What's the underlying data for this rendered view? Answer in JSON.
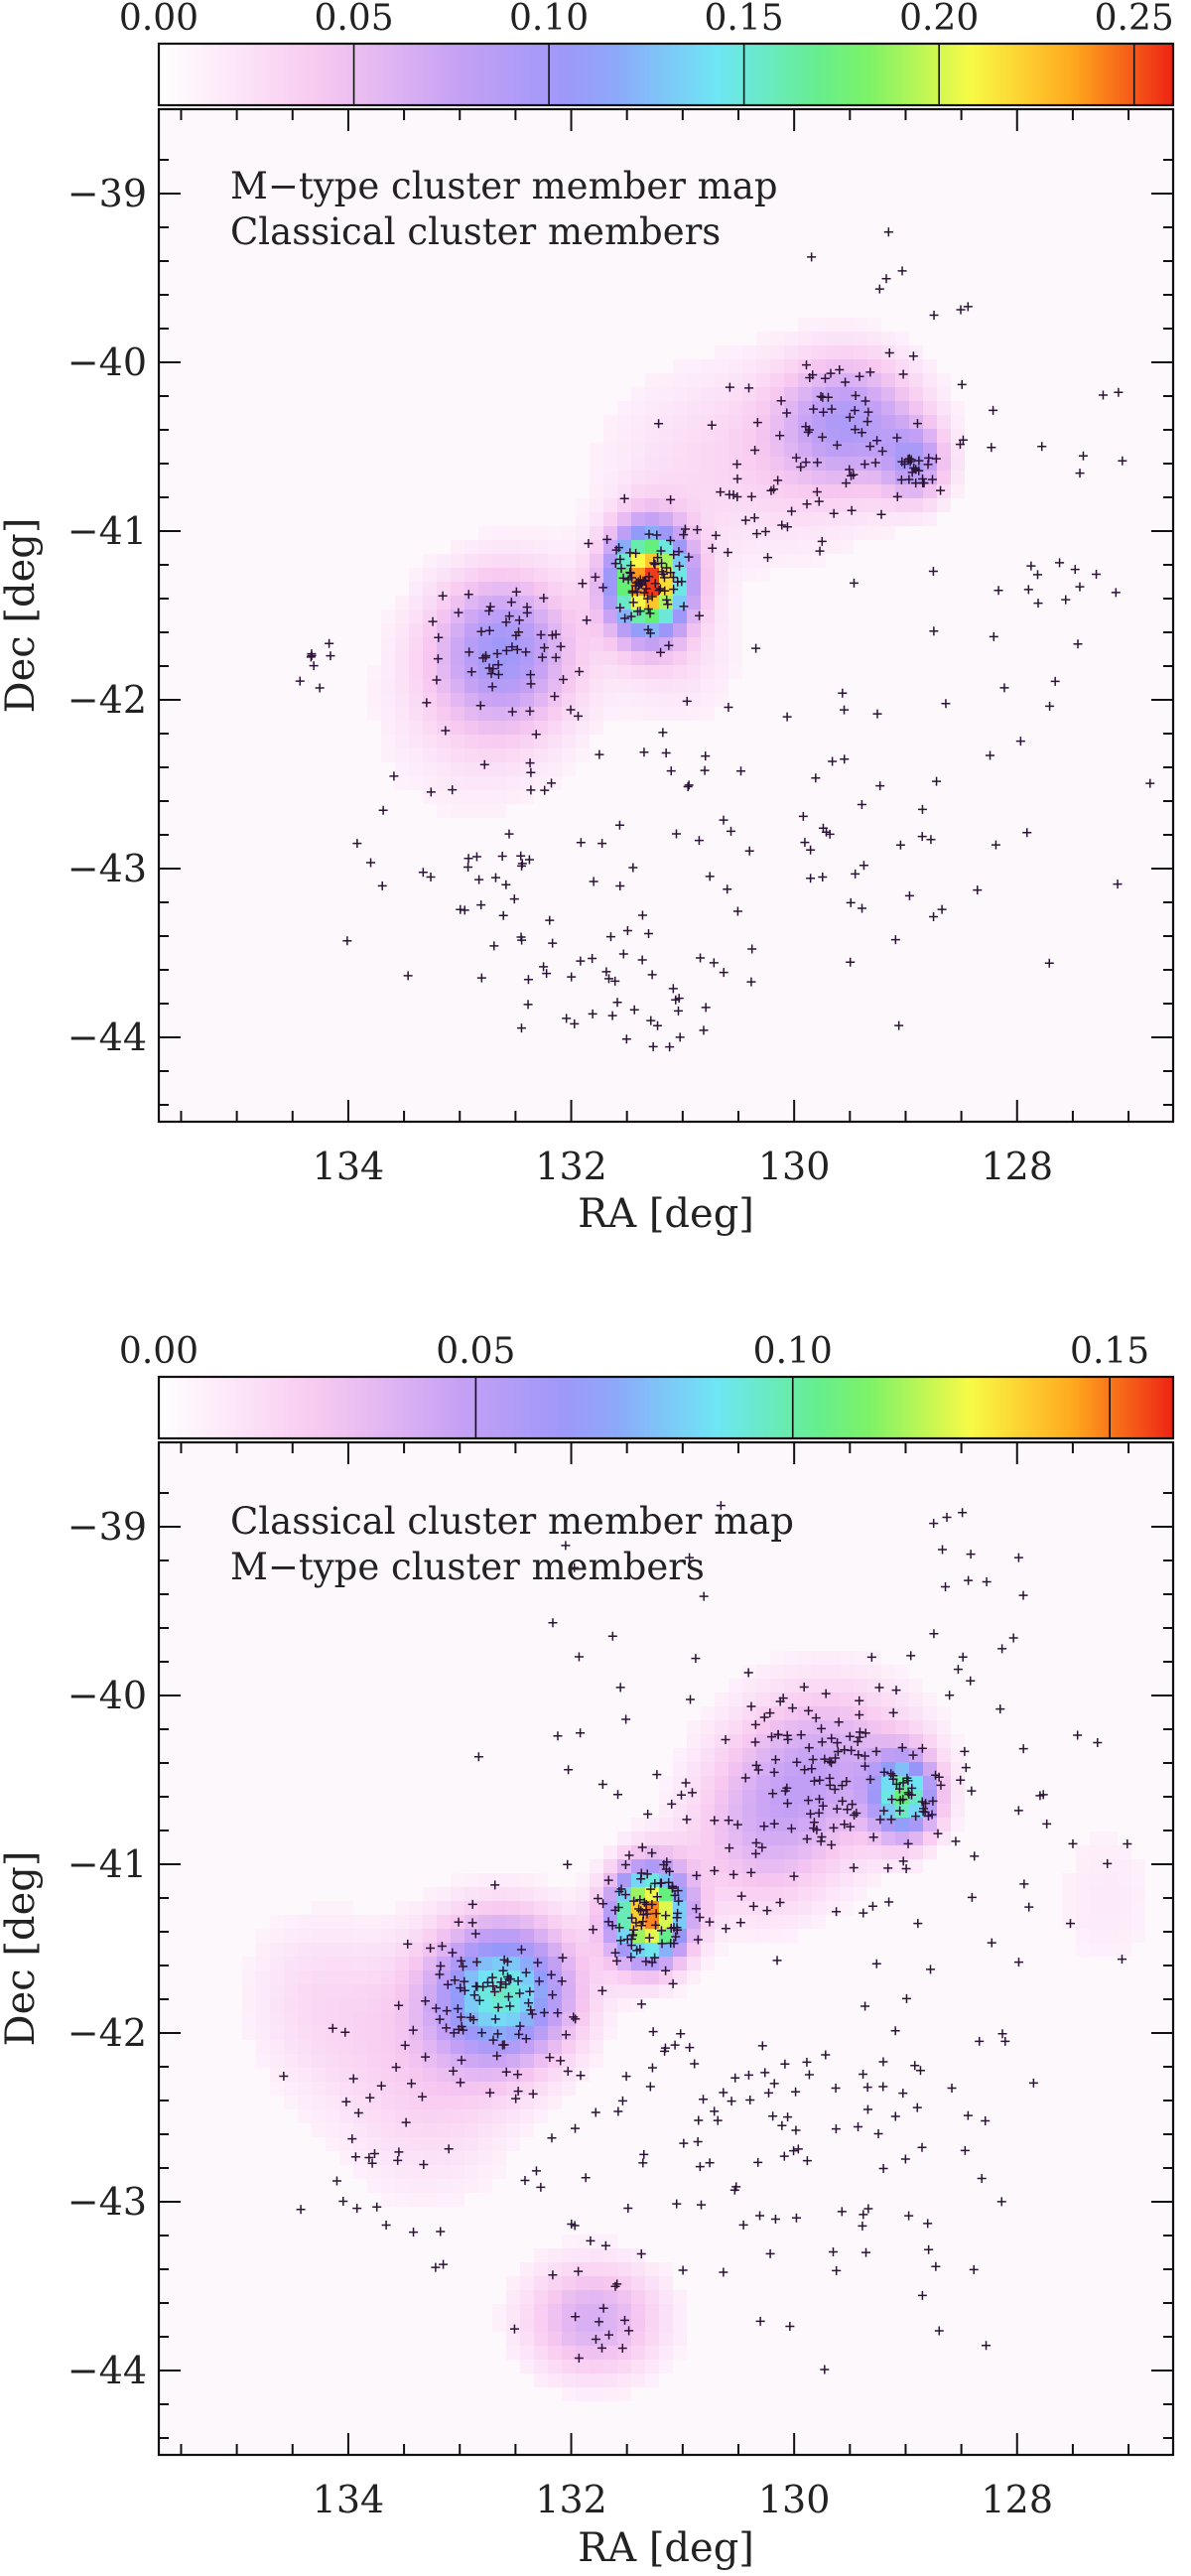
{
  "chart_data": [
    {
      "type": "scatter",
      "title_lines": [
        "M−type cluster member map",
        "Classical cluster members"
      ],
      "xlabel": "RA [deg]",
      "ylabel": "Dec [deg]",
      "xlim": [
        135.7,
        126.6
      ],
      "ylim": [
        -44.5,
        -38.5
      ],
      "x_ticks": [
        "134",
        "132",
        "130",
        "128"
      ],
      "x_tick_values": [
        134,
        132,
        130,
        128
      ],
      "y_ticks": [
        "−39",
        "−40",
        "−41",
        "−42",
        "−43",
        "−44"
      ],
      "y_tick_values": [
        -39,
        -40,
        -41,
        -42,
        -43,
        -44
      ],
      "colorbar": {
        "range": [
          0,
          0.26
        ],
        "ticks": [
          "0.00",
          "0.05",
          "0.10",
          "0.15",
          "0.20",
          "0.25"
        ],
        "tick_values": [
          0,
          0.05,
          0.1,
          0.15,
          0.2,
          0.25
        ]
      },
      "density_peaks": [
        {
          "ra": 131.3,
          "dec": -41.3,
          "value": 0.25,
          "sx": 0.25,
          "sy": 0.22
        },
        {
          "ra": 132.6,
          "dec": -41.7,
          "value": 0.09,
          "sx": 0.45,
          "sy": 0.32
        },
        {
          "ra": 129.5,
          "dec": -40.35,
          "value": 0.08,
          "sx": 0.45,
          "sy": 0.28
        },
        {
          "ra": 128.9,
          "dec": -40.6,
          "value": 0.07,
          "sx": 0.2,
          "sy": 0.16
        },
        {
          "ra": 130.5,
          "dec": -40.6,
          "value": 0.03,
          "sx": 0.9,
          "sy": 0.45
        },
        {
          "ra": 132.9,
          "dec": -42.1,
          "value": 0.02,
          "sx": 0.7,
          "sy": 0.5
        },
        {
          "ra": 131.0,
          "dec": -41.8,
          "value": 0.02,
          "sx": 0.4,
          "sy": 0.3
        }
      ],
      "member_clumps": [
        {
          "ra": 131.3,
          "dec": -41.3,
          "sx": 0.18,
          "sy": 0.15,
          "n": 75
        },
        {
          "ra": 132.6,
          "dec": -41.75,
          "sx": 0.32,
          "sy": 0.22,
          "n": 55
        },
        {
          "ra": 129.5,
          "dec": -40.35,
          "sx": 0.35,
          "sy": 0.2,
          "n": 45
        },
        {
          "ra": 128.9,
          "dec": -40.62,
          "sx": 0.12,
          "sy": 0.08,
          "n": 22
        },
        {
          "ra": 130.3,
          "dec": -40.85,
          "sx": 0.5,
          "sy": 0.3,
          "n": 45
        },
        {
          "ra": 131.6,
          "dec": -43.75,
          "sx": 0.45,
          "sy": 0.2,
          "n": 35
        },
        {
          "ra": 134.3,
          "dec": -41.8,
          "sx": 0.08,
          "sy": 0.08,
          "n": 8
        },
        {
          "ra": 133.0,
          "dec": -42.9,
          "sx": 0.55,
          "sy": 0.35,
          "n": 35
        },
        {
          "ra": 129.2,
          "dec": -42.8,
          "sx": 0.7,
          "sy": 0.5,
          "n": 35
        },
        {
          "ra": 131.2,
          "dec": -42.6,
          "sx": 0.9,
          "sy": 0.6,
          "n": 45
        },
        {
          "ra": 128.0,
          "dec": -41.3,
          "sx": 0.6,
          "sy": 0.6,
          "n": 30
        },
        {
          "ra": 129.0,
          "dec": -39.8,
          "sx": 0.5,
          "sy": 0.3,
          "n": 12
        }
      ]
    },
    {
      "type": "scatter",
      "title_lines": [
        "Classical cluster member map",
        "M−type cluster members"
      ],
      "xlabel": "RA [deg]",
      "ylabel": "Dec [deg]",
      "xlim": [
        135.7,
        126.6
      ],
      "ylim": [
        -44.5,
        -38.5
      ],
      "x_ticks": [
        "134",
        "132",
        "130",
        "128"
      ],
      "x_tick_values": [
        134,
        132,
        130,
        128
      ],
      "y_ticks": [
        "−39",
        "−40",
        "−41",
        "−42",
        "−43",
        "−44"
      ],
      "y_tick_values": [
        -39,
        -40,
        -41,
        -42,
        -43,
        -44
      ],
      "colorbar": {
        "range": [
          0,
          0.16
        ],
        "ticks": [
          "0.00",
          "0.05",
          "0.10",
          "0.15"
        ],
        "tick_values": [
          0,
          0.05,
          0.1,
          0.15
        ]
      },
      "density_peaks": [
        {
          "ra": 131.3,
          "dec": -41.3,
          "value": 0.15,
          "sx": 0.24,
          "sy": 0.2
        },
        {
          "ra": 132.6,
          "dec": -41.75,
          "value": 0.09,
          "sx": 0.45,
          "sy": 0.3
        },
        {
          "ra": 129.0,
          "dec": -40.6,
          "value": 0.09,
          "sx": 0.2,
          "sy": 0.17
        },
        {
          "ra": 129.7,
          "dec": -40.4,
          "value": 0.04,
          "sx": 0.6,
          "sy": 0.35
        },
        {
          "ra": 130.3,
          "dec": -40.85,
          "value": 0.03,
          "sx": 0.5,
          "sy": 0.35
        },
        {
          "ra": 131.8,
          "dec": -43.7,
          "value": 0.04,
          "sx": 0.45,
          "sy": 0.25
        },
        {
          "ra": 133.3,
          "dec": -42.3,
          "value": 0.02,
          "sx": 0.6,
          "sy": 0.5
        },
        {
          "ra": 134.3,
          "dec": -41.8,
          "value": 0.015,
          "sx": 0.5,
          "sy": 0.4
        },
        {
          "ra": 127.2,
          "dec": -41.2,
          "value": 0.01,
          "sx": 0.4,
          "sy": 0.4
        }
      ],
      "member_clumps": [
        {
          "ra": 131.3,
          "dec": -41.3,
          "sx": 0.2,
          "sy": 0.16,
          "n": 80
        },
        {
          "ra": 132.7,
          "dec": -41.8,
          "sx": 0.35,
          "sy": 0.22,
          "n": 85
        },
        {
          "ra": 129.6,
          "dec": -40.4,
          "sx": 0.45,
          "sy": 0.3,
          "n": 90
        },
        {
          "ra": 128.95,
          "dec": -40.6,
          "sx": 0.15,
          "sy": 0.1,
          "n": 25
        },
        {
          "ra": 130.3,
          "dec": -40.85,
          "sx": 0.45,
          "sy": 0.3,
          "n": 40
        },
        {
          "ra": 131.8,
          "dec": -43.7,
          "sx": 0.3,
          "sy": 0.15,
          "n": 15
        },
        {
          "ra": 133.5,
          "dec": -42.6,
          "sx": 0.6,
          "sy": 0.4,
          "n": 40
        },
        {
          "ra": 129.2,
          "dec": -42.8,
          "sx": 0.8,
          "sy": 0.6,
          "n": 60
        },
        {
          "ra": 131.2,
          "dec": -42.5,
          "sx": 0.9,
          "sy": 0.6,
          "n": 60
        },
        {
          "ra": 128.0,
          "dec": -41.2,
          "sx": 0.7,
          "sy": 0.7,
          "n": 45
        },
        {
          "ra": 128.3,
          "dec": -39.5,
          "sx": 0.4,
          "sy": 0.4,
          "n": 18
        },
        {
          "ra": 131.5,
          "dec": -40.2,
          "sx": 0.8,
          "sy": 0.5,
          "n": 25
        }
      ]
    }
  ]
}
